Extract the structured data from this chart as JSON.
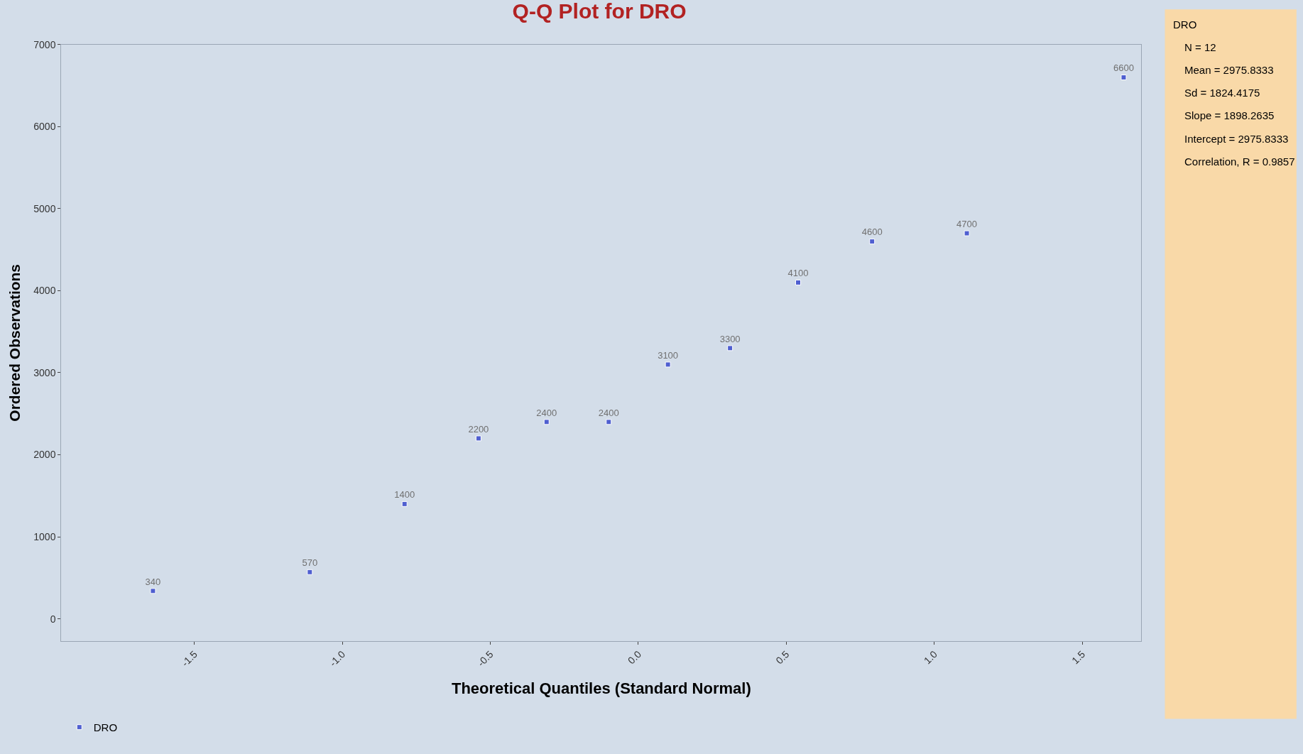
{
  "chart_data": {
    "type": "scatter",
    "title": "Q-Q Plot for DRO",
    "xlabel": "Theoretical Quantiles (Standard Normal)",
    "ylabel": "Ordered Observations",
    "x": [
      -1.64,
      -1.11,
      -0.79,
      -0.54,
      -0.31,
      -0.1,
      0.1,
      0.31,
      0.54,
      0.79,
      1.11,
      1.64
    ],
    "series": [
      {
        "name": "DRO",
        "color": "#4f5fd0",
        "values": [
          340,
          570,
          1400,
          2200,
          2400,
          2400,
          3100,
          3300,
          4100,
          4600,
          4700,
          6600
        ]
      }
    ],
    "data_labels": true,
    "marker": "square",
    "grid": false,
    "legend": "bottom left",
    "xlim": [
      -1.95,
      1.7
    ],
    "xticks": [
      {
        "value": -1.5,
        "label": "-1.5"
      },
      {
        "value": -1.0,
        "label": "-1.0"
      },
      {
        "value": -0.5,
        "label": "-0.5"
      },
      {
        "value": 0,
        "label": "0.0"
      },
      {
        "value": 0.5,
        "label": "0.5"
      },
      {
        "value": 1.0,
        "label": "1.0"
      },
      {
        "value": 1.5,
        "label": "1.5"
      }
    ],
    "ylim": [
      -270,
      7000
    ],
    "yticks": [
      0,
      1000,
      2000,
      3000,
      4000,
      5000,
      6000,
      7000
    ],
    "annotations": [
      "DRO",
      "N = 12",
      "Mean = 2975.8333",
      "Sd = 1824.4175",
      "Slope = 1898.2635",
      "Intercept = 2975.8333",
      "Correlation, R = 0.9857"
    ]
  }
}
